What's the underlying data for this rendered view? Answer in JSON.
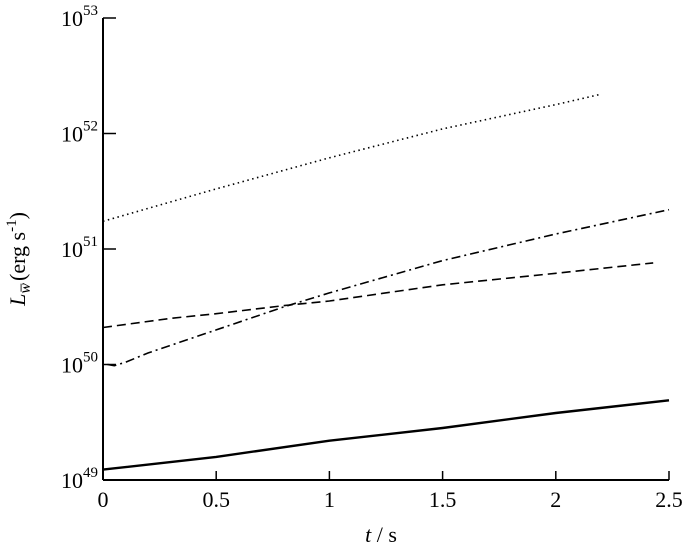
{
  "chart_data": {
    "type": "line",
    "xlabel": {
      "italic": "t",
      "rest": " / s"
    },
    "ylabel": {
      "italic": "L",
      "sub_italic": "w̅",
      "rest": "(erg s",
      "sup": "-1",
      "close": ")"
    },
    "x_axis": {
      "range": [
        0,
        2.5
      ],
      "ticks": [
        "0",
        "0.5",
        "1",
        "1.5",
        "2",
        "2.5"
      ]
    },
    "y_axis": {
      "scale": "log",
      "range_exponent": [
        49,
        53
      ],
      "ticks": [
        {
          "base": "10",
          "exp": "49"
        },
        {
          "base": "10",
          "exp": "50"
        },
        {
          "base": "10",
          "exp": "51"
        },
        {
          "base": "10",
          "exp": "52"
        },
        {
          "base": "10",
          "exp": "53"
        }
      ]
    },
    "grid": false,
    "series": [
      {
        "style": "dotted",
        "x": [
          0,
          0.5,
          1.0,
          1.5,
          2.0,
          2.2
        ],
        "log10_y": [
          51.24,
          51.52,
          51.79,
          52.04,
          52.25,
          52.34
        ]
      },
      {
        "style": "dash-dot",
        "x": [
          0.02,
          0.05,
          0.1,
          0.2,
          0.5,
          0.8,
          1.0,
          1.5,
          2.0,
          2.5
        ],
        "log10_y": [
          50.0,
          49.99,
          50.02,
          50.1,
          50.3,
          50.5,
          50.62,
          50.9,
          51.13,
          51.34
        ]
      },
      {
        "style": "dashed",
        "x": [
          0,
          0.3,
          0.5,
          0.8,
          1.0,
          1.5,
          2.0,
          2.43
        ],
        "log10_y": [
          50.32,
          50.4,
          50.44,
          50.51,
          50.55,
          50.69,
          50.79,
          50.88
        ]
      },
      {
        "style": "solid",
        "x": [
          0,
          0.5,
          1.0,
          1.5,
          2.0,
          2.5
        ],
        "log10_y": [
          49.09,
          49.2,
          49.34,
          49.45,
          49.58,
          49.69
        ]
      }
    ]
  }
}
